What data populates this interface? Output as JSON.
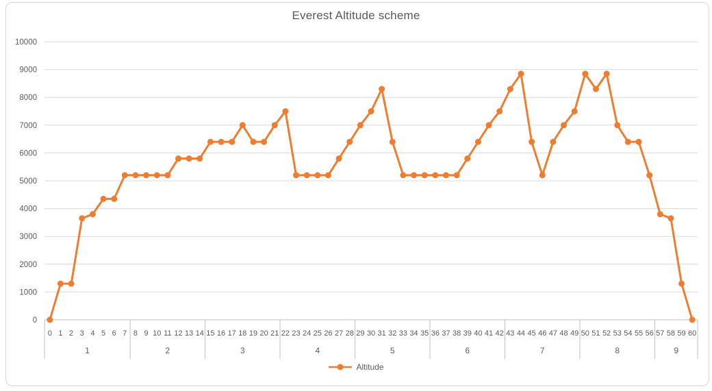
{
  "chart_data": {
    "type": "line",
    "title": "Everest Altitude scheme",
    "xlabel": "",
    "ylabel": "",
    "ylim": [
      0,
      10000
    ],
    "yticks": [
      0,
      1000,
      2000,
      3000,
      4000,
      5000,
      6000,
      7000,
      8000,
      9000,
      10000
    ],
    "grid": true,
    "legend_position": "bottom",
    "x": [
      0,
      1,
      2,
      3,
      4,
      5,
      6,
      7,
      8,
      9,
      10,
      11,
      12,
      13,
      14,
      15,
      16,
      17,
      18,
      19,
      20,
      21,
      22,
      23,
      24,
      25,
      26,
      27,
      28,
      29,
      30,
      31,
      32,
      33,
      34,
      35,
      36,
      37,
      38,
      39,
      40,
      41,
      42,
      43,
      44,
      45,
      46,
      47,
      48,
      49,
      50,
      51,
      52,
      53,
      54,
      55,
      56,
      57,
      58,
      59,
      60
    ],
    "series": [
      {
        "name": "Altitude",
        "color": "#ED7D31",
        "values": [
          0,
          1300,
          1300,
          3650,
          3800,
          4350,
          4350,
          5200,
          5200,
          5200,
          5200,
          5200,
          5800,
          5800,
          5800,
          6400,
          6400,
          6400,
          7000,
          6400,
          6400,
          7000,
          7500,
          5200,
          5200,
          5200,
          5200,
          5800,
          6400,
          7000,
          7500,
          8300,
          6400,
          5200,
          5200,
          5200,
          5200,
          5200,
          5200,
          5800,
          6400,
          7000,
          7500,
          8300,
          8848,
          6400,
          5200,
          6400,
          7000,
          7500,
          8848,
          8300,
          8848,
          7000,
          6400,
          6400,
          5200,
          3800,
          3650,
          1300,
          0
        ]
      }
    ],
    "group_axis": {
      "labels": [
        "1",
        "2",
        "3",
        "4",
        "5",
        "6",
        "7",
        "8",
        "9"
      ],
      "spans": [
        [
          0,
          7
        ],
        [
          8,
          14
        ],
        [
          15,
          21
        ],
        [
          22,
          28
        ],
        [
          29,
          35
        ],
        [
          36,
          42
        ],
        [
          43,
          49
        ],
        [
          50,
          56
        ],
        [
          57,
          60
        ]
      ]
    },
    "colors": {
      "series": "#ED7D31",
      "text": "#595959",
      "gridline": "#D9D9D9",
      "axis_line": "#BFBFBF",
      "frame_border": "#D6D6D6"
    }
  }
}
